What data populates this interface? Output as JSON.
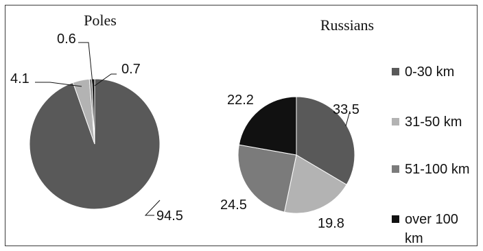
{
  "chart_data": [
    {
      "type": "pie",
      "title": "Poles",
      "categories": [
        "0-30 km",
        "31-50 km",
        "51-100 km",
        "over 100 km"
      ],
      "values": [
        94.5,
        4.1,
        0.6,
        0.7
      ],
      "data_labels": [
        "94.5",
        "4.1",
        "0.6",
        "0.7"
      ],
      "legend": "none"
    },
    {
      "type": "pie",
      "title": "Russians",
      "categories": [
        "0-30 km",
        "31-50 km",
        "51-100 km",
        "over 100 km"
      ],
      "values": [
        33.5,
        19.8,
        24.5,
        22.2
      ],
      "data_labels": [
        "33.5",
        "19.8",
        "24.5",
        "22.2"
      ],
      "legend": "right"
    }
  ],
  "legend": {
    "items": [
      "0-30 km",
      "31-50 km",
      "51-100 km",
      "over 100",
      "km"
    ]
  },
  "colors": {
    "0-30 km": "#595959",
    "31-50 km": "#b3b3b3",
    "51-100 km": "#7b7b7b",
    "over 100 km": "#111111"
  }
}
